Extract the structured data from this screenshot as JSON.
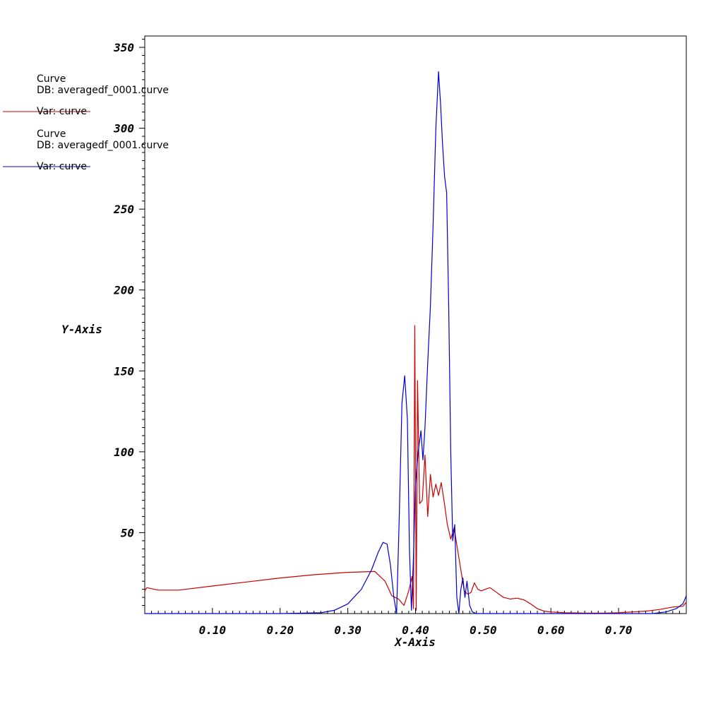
{
  "chart_data": {
    "type": "line",
    "xlabel": "X-Axis",
    "ylabel": "Y-Axis",
    "xlim": [
      0.0,
      0.8
    ],
    "ylim": [
      0,
      357
    ],
    "xticks": [
      0.1,
      0.2,
      0.3,
      0.4,
      0.5,
      0.6,
      0.7
    ],
    "xtick_labels": [
      "0.10",
      "0.20",
      "0.30",
      "0.40",
      "0.50",
      "0.60",
      "0.70"
    ],
    "yticks": [
      50,
      100,
      150,
      200,
      250,
      300,
      350
    ],
    "ytick_labels": [
      "50",
      "100",
      "150",
      "200",
      "250",
      "300",
      "350"
    ],
    "grid": false,
    "legend_position": "top-left",
    "series": [
      {
        "name": "Curve",
        "db": "DB: averagedf_0001.curve",
        "var": "Var: curve",
        "color": "#cc0000",
        "x": [
          0.0,
          0.003,
          0.02,
          0.05,
          0.1,
          0.15,
          0.2,
          0.25,
          0.3,
          0.34,
          0.355,
          0.365,
          0.375,
          0.383,
          0.39,
          0.395,
          0.397,
          0.399,
          0.401,
          0.403,
          0.406,
          0.41,
          0.414,
          0.418,
          0.422,
          0.426,
          0.43,
          0.434,
          0.438,
          0.442,
          0.447,
          0.452,
          0.457,
          0.462,
          0.467,
          0.472,
          0.477,
          0.482,
          0.487,
          0.492,
          0.497,
          0.503,
          0.51,
          0.52,
          0.53,
          0.54,
          0.55,
          0.56,
          0.57,
          0.58,
          0.59,
          0.6,
          0.62,
          0.65,
          0.68,
          0.7,
          0.72,
          0.74,
          0.76,
          0.78,
          0.795,
          0.8
        ],
        "y": [
          14,
          16,
          14.5,
          14.5,
          17,
          19.5,
          22,
          24,
          25.5,
          26,
          20,
          11,
          9,
          5,
          14,
          23,
          3,
          178,
          2,
          144,
          68,
          70,
          98,
          60,
          86,
          72,
          80,
          73,
          81,
          70,
          55,
          46,
          53,
          40,
          27,
          14,
          12,
          13,
          19,
          15,
          14,
          15,
          16,
          13,
          10,
          9,
          9.5,
          8.5,
          6,
          3,
          1.5,
          1,
          0.5,
          0.3,
          0.3,
          0.5,
          1,
          1.5,
          2.5,
          4,
          4.5,
          7
        ]
      },
      {
        "name": "Curve",
        "db": "DB: averagedf_0001.curve",
        "var": "Var: curve",
        "color": "#0000cc",
        "x": [
          0.0,
          0.1,
          0.2,
          0.26,
          0.28,
          0.3,
          0.32,
          0.335,
          0.345,
          0.352,
          0.358,
          0.363,
          0.368,
          0.372,
          0.376,
          0.38,
          0.384,
          0.388,
          0.391,
          0.394,
          0.397,
          0.4,
          0.404,
          0.408,
          0.411,
          0.414,
          0.418,
          0.422,
          0.426,
          0.43,
          0.434,
          0.437,
          0.44,
          0.443,
          0.446,
          0.449,
          0.452,
          0.455,
          0.458,
          0.461,
          0.464,
          0.467,
          0.47,
          0.473,
          0.476,
          0.48,
          0.484,
          0.49,
          0.5,
          0.55,
          0.6,
          0.65,
          0.7,
          0.75,
          0.77,
          0.785,
          0.795,
          0.8
        ],
        "y": [
          0,
          0,
          0,
          0.5,
          2,
          6,
          15,
          27,
          38,
          44,
          43,
          30,
          10,
          0,
          60,
          130,
          147,
          120,
          40,
          2,
          35,
          80,
          100,
          113,
          95,
          115,
          155,
          190,
          240,
          300,
          335,
          315,
          290,
          270,
          260,
          190,
          100,
          45,
          55,
          10,
          0,
          15,
          22,
          10,
          20,
          5,
          1,
          0,
          0,
          0,
          0,
          0,
          0,
          0,
          1,
          3,
          6,
          11
        ]
      }
    ]
  }
}
